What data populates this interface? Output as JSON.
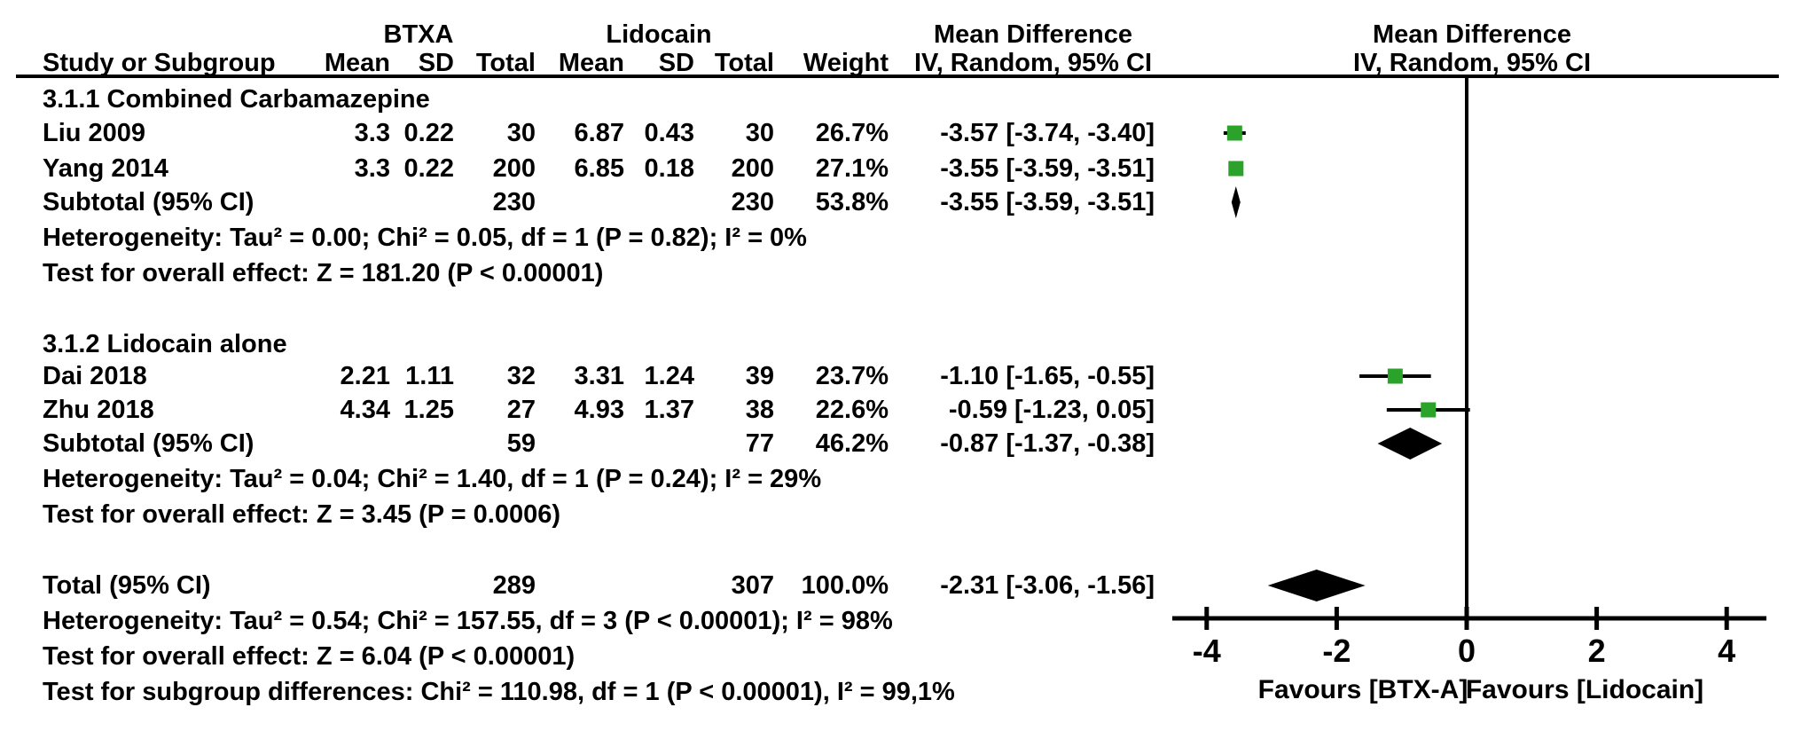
{
  "header": {
    "study_col": "Study or Subgroup",
    "group1": "BTXA",
    "group2": "Lidocain",
    "mean": "Mean",
    "sd": "SD",
    "total": "Total",
    "weight": "Weight",
    "md_label": "Mean Difference",
    "md_sub": "IV, Random, 95% CI"
  },
  "sections": [
    {
      "title": "3.1.1 Combined Carbamazepine",
      "rows": [
        {
          "study": "Liu 2009",
          "mean1": "3.3",
          "sd1": "0.22",
          "total1": "30",
          "mean2": "6.87",
          "sd2": "0.43",
          "total2": "30",
          "weight": "26.7%",
          "ci": "-3.57 [-3.74, -3.40]"
        },
        {
          "study": "Yang 2014",
          "mean1": "3.3",
          "sd1": "0.22",
          "total1": "200",
          "mean2": "6.85",
          "sd2": "0.18",
          "total2": "200",
          "weight": "27.1%",
          "ci": "-3.55 [-3.59, -3.51]"
        }
      ],
      "subtotal": {
        "label": "Subtotal (95% CI)",
        "total1": "230",
        "total2": "230",
        "weight": "53.8%",
        "ci": "-3.55 [-3.59, -3.51]"
      },
      "heterogeneity": "Heterogeneity: Tau² = 0.00; Chi² = 0.05, df = 1 (P = 0.82); I² = 0%",
      "overall": "Test for overall effect: Z = 181.20 (P < 0.00001)"
    },
    {
      "title": "3.1.2 Lidocain alone",
      "rows": [
        {
          "study": "Dai 2018",
          "mean1": "2.21",
          "sd1": "1.11",
          "total1": "32",
          "mean2": "3.31",
          "sd2": "1.24",
          "total2": "39",
          "weight": "23.7%",
          "ci": "-1.10 [-1.65, -0.55]"
        },
        {
          "study": "Zhu 2018",
          "mean1": "4.34",
          "sd1": "1.25",
          "total1": "27",
          "mean2": "4.93",
          "sd2": "1.37",
          "total2": "38",
          "weight": "22.6%",
          "ci": "-0.59 [-1.23, 0.05]"
        }
      ],
      "subtotal": {
        "label": "Subtotal (95% CI)",
        "total1": "59",
        "total2": "77",
        "weight": "46.2%",
        "ci": "-0.87 [-1.37, -0.38]"
      },
      "heterogeneity": "Heterogeneity: Tau² = 0.04; Chi² = 1.40, df = 1 (P = 0.24); I² = 29%",
      "overall": "Test for overall effect: Z = 3.45 (P = 0.0006)"
    }
  ],
  "total_row": {
    "label": "Total (95% CI)",
    "total1": "289",
    "total2": "307",
    "weight": "100.0%",
    "ci": "-2.31 [-3.06, -1.56]"
  },
  "footer": {
    "heterogeneity": "Heterogeneity: Tau² = 0.54; Chi² = 157.55, df = 3 (P < 0.00001); I² = 98%",
    "overall": "Test for overall effect: Z = 6.04 (P < 0.00001)",
    "subgroup_diff": "Test for subgroup differences: Chi² = 110.98, df = 1 (P < 0.00001), I² = 99,1%"
  },
  "chart_data": {
    "type": "forest",
    "effect_measure": "Mean Difference",
    "model": "IV, Random, 95% CI",
    "x_ticks": [
      -4,
      -2,
      0,
      2,
      4
    ],
    "xlim": [
      -4.55,
      4.6
    ],
    "favours_left": "Favours [BTX-A]",
    "favours_right": "Favours [Lidocain]",
    "marker_color": "#2ba32b",
    "studies": [
      {
        "label": "Liu 2009",
        "md": -3.57,
        "ci_low": -3.74,
        "ci_high": -3.4,
        "weight_pct": 26.7,
        "row": "liu"
      },
      {
        "label": "Yang 2014",
        "md": -3.55,
        "ci_low": -3.59,
        "ci_high": -3.51,
        "weight_pct": 27.1,
        "row": "yang"
      },
      {
        "label": "Dai 2018",
        "md": -1.1,
        "ci_low": -1.65,
        "ci_high": -0.55,
        "weight_pct": 23.7,
        "row": "dai"
      },
      {
        "label": "Zhu 2018",
        "md": -0.59,
        "ci_low": -1.23,
        "ci_high": 0.05,
        "weight_pct": 22.6,
        "row": "zhu"
      }
    ],
    "diamonds": [
      {
        "label": "Subtotal 3.1.1",
        "md": -3.55,
        "ci_low": -3.59,
        "ci_high": -3.51,
        "row": "sub1"
      },
      {
        "label": "Subtotal 3.1.2",
        "md": -0.87,
        "ci_low": -1.37,
        "ci_high": -0.38,
        "row": "sub2"
      },
      {
        "label": "Total",
        "md": -2.31,
        "ci_low": -3.06,
        "ci_high": -1.56,
        "row": "total"
      }
    ]
  }
}
